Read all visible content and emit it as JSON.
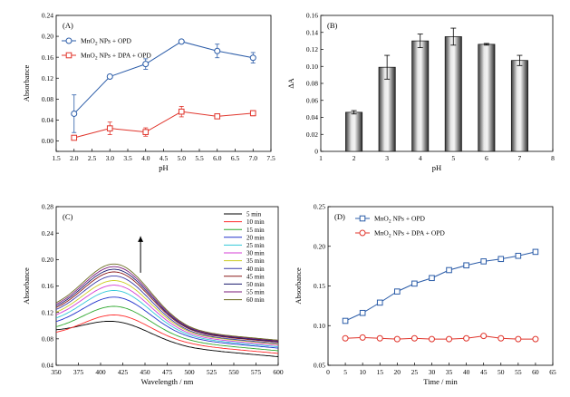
{
  "chart_data": [
    {
      "panel": "(A)",
      "type": "line",
      "xlabel": "pH",
      "ylabel": "Absorbance",
      "xlim": [
        1.5,
        7.5
      ],
      "ylim": [
        -0.02,
        0.24
      ],
      "xticks": [
        1.5,
        2.0,
        2.5,
        3.0,
        3.5,
        4.0,
        4.5,
        5.0,
        5.5,
        6.0,
        6.5,
        7.0,
        7.5
      ],
      "xtick_labels": [
        "1.5",
        "2.0",
        "2.5",
        "3.0",
        "3.5",
        "4.0",
        "4.5",
        "5.0",
        "5.5",
        "6.0",
        "6.5",
        "7.0",
        "7.5"
      ],
      "yticks": [
        -0.02,
        0.0,
        0.04,
        0.08,
        0.12,
        0.16,
        0.2,
        0.24
      ],
      "ytick_labels": [
        "",
        "0.00",
        "0.04",
        "0.08",
        "0.12",
        "0.16",
        "0.20",
        "0.24"
      ],
      "legend_position": "top-left",
      "series": [
        {
          "name": "MnO2 NPs + OPD",
          "label_main": "MnO",
          "label_sub": "2",
          "label_rest": " NPs + OPD",
          "color": "#2b5ca8",
          "marker": "circle",
          "x": [
            2,
            3,
            4,
            5,
            6,
            7
          ],
          "y": [
            0.052,
            0.123,
            0.147,
            0.19,
            0.172,
            0.159
          ],
          "err": [
            0.036,
            0.003,
            0.01,
            0.003,
            0.013,
            0.01
          ]
        },
        {
          "name": "MnO2 NPs + DPA + OPD",
          "label_main": "MnO",
          "label_sub": "2",
          "label_rest": " NPs + DPA + OPD",
          "color": "#e0342b",
          "marker": "square",
          "x": [
            2,
            3,
            4,
            5,
            6,
            7
          ],
          "y": [
            0.006,
            0.024,
            0.017,
            0.056,
            0.047,
            0.053
          ],
          "err": [
            0.004,
            0.012,
            0.008,
            0.01,
            0.003,
            0.005
          ]
        }
      ]
    },
    {
      "panel": "(B)",
      "type": "bar",
      "xlabel": "pH",
      "ylabel": "ΔA",
      "xlim": [
        1,
        8
      ],
      "ylim": [
        0,
        0.16
      ],
      "xticks": [
        1,
        2,
        3,
        4,
        5,
        6,
        7,
        8
      ],
      "xtick_labels": [
        "1",
        "2",
        "3",
        "4",
        "5",
        "6",
        "7",
        "8"
      ],
      "yticks": [
        0,
        0.02,
        0.04,
        0.06,
        0.08,
        0.1,
        0.12,
        0.14,
        0.16
      ],
      "ytick_labels": [
        "0",
        "0.02",
        "0.04",
        "0.06",
        "0.08",
        "0.10",
        "0.12",
        "0.14",
        "0.16"
      ],
      "x": [
        2,
        3,
        4,
        5,
        6,
        7
      ],
      "values": [
        0.046,
        0.099,
        0.13,
        0.135,
        0.126,
        0.107
      ],
      "err": [
        0.002,
        0.014,
        0.008,
        0.01,
        0.001,
        0.006
      ],
      "bar_width": 0.5
    },
    {
      "panel": "(C)",
      "type": "line",
      "xlabel": "Wavelength / nm",
      "ylabel": "Absorbance",
      "xlim": [
        350,
        600
      ],
      "ylim": [
        0.04,
        0.28
      ],
      "xticks": [
        350,
        375,
        400,
        425,
        450,
        475,
        500,
        525,
        550,
        575,
        600
      ],
      "xtick_labels": [
        "350",
        "375",
        "400",
        "425",
        "450",
        "475",
        "500",
        "525",
        "550",
        "575",
        "600"
      ],
      "yticks": [
        0.04,
        0.08,
        0.12,
        0.16,
        0.2,
        0.24,
        0.28
      ],
      "ytick_labels": [
        "0.04",
        "0.08",
        "0.12",
        "0.16",
        "0.20",
        "0.24",
        "0.28"
      ],
      "legend_position": "top-right",
      "peak_nm": 418,
      "arrow": "increasing with time",
      "series": [
        {
          "name": "5 min",
          "color": "#000000",
          "start": 0.088,
          "peak": 0.106,
          "end": 0.053
        },
        {
          "name": "10 min",
          "color": "#ff2a2a",
          "start": 0.082,
          "peak": 0.116,
          "end": 0.058
        },
        {
          "name": "15 min",
          "color": "#2fa82f",
          "start": 0.089,
          "peak": 0.129,
          "end": 0.062
        },
        {
          "name": "20 min",
          "color": "#2233cc",
          "start": 0.095,
          "peak": 0.143,
          "end": 0.066
        },
        {
          "name": "25 min",
          "color": "#33c8d8",
          "start": 0.099,
          "peak": 0.153,
          "end": 0.068
        },
        {
          "name": "30 min",
          "color": "#d43fd4",
          "start": 0.103,
          "peak": 0.161,
          "end": 0.07
        },
        {
          "name": "35 min",
          "color": "#cccc22",
          "start": 0.106,
          "peak": 0.168,
          "end": 0.072
        },
        {
          "name": "40 min",
          "color": "#3a3aa8",
          "start": 0.109,
          "peak": 0.175,
          "end": 0.073
        },
        {
          "name": "45 min",
          "color": "#8a1a1a",
          "start": 0.111,
          "peak": 0.181,
          "end": 0.075
        },
        {
          "name": "50 min",
          "color": "#1a1a6e",
          "start": 0.113,
          "peak": 0.185,
          "end": 0.076
        },
        {
          "name": "55 min",
          "color": "#7a1a7a",
          "start": 0.115,
          "peak": 0.189,
          "end": 0.077
        },
        {
          "name": "60 min",
          "color": "#6b6b22",
          "start": 0.117,
          "peak": 0.193,
          "end": 0.078
        }
      ]
    },
    {
      "panel": "(D)",
      "type": "line",
      "xlabel": "Time / min",
      "ylabel": "Absorbance",
      "xlim": [
        0,
        65
      ],
      "ylim": [
        0.05,
        0.25
      ],
      "xticks": [
        0,
        5,
        10,
        15,
        20,
        25,
        30,
        35,
        40,
        45,
        50,
        55,
        60,
        65
      ],
      "xtick_labels": [
        "0",
        "5",
        "10",
        "15",
        "20",
        "25",
        "30",
        "35",
        "40",
        "45",
        "50",
        "55",
        "60",
        "65"
      ],
      "yticks": [
        0.05,
        0.1,
        0.15,
        0.2,
        0.25
      ],
      "ytick_labels": [
        "0.05",
        "0.10",
        "0.15",
        "0.20",
        "0.25"
      ],
      "legend_position": "top-right",
      "series": [
        {
          "name": "MnO2 NPs + OPD",
          "label_main": "MnO",
          "label_sub": "2",
          "label_rest": " NPs + OPD",
          "color": "#2b5ca8",
          "marker": "square",
          "x": [
            5,
            10,
            15,
            20,
            25,
            30,
            35,
            40,
            45,
            50,
            55,
            60
          ],
          "y": [
            0.106,
            0.116,
            0.129,
            0.143,
            0.153,
            0.16,
            0.17,
            0.176,
            0.181,
            0.184,
            0.188,
            0.193
          ]
        },
        {
          "name": "MnO2 NPs + DPA + OPD",
          "label_main": "MnO",
          "label_sub": "2",
          "label_rest": " NPs + DPA + OPD",
          "color": "#e0342b",
          "marker": "circle",
          "x": [
            5,
            10,
            15,
            20,
            25,
            30,
            35,
            40,
            45,
            50,
            55,
            60
          ],
          "y": [
            0.084,
            0.085,
            0.084,
            0.083,
            0.084,
            0.083,
            0.083,
            0.084,
            0.087,
            0.084,
            0.083,
            0.083
          ]
        }
      ]
    }
  ]
}
